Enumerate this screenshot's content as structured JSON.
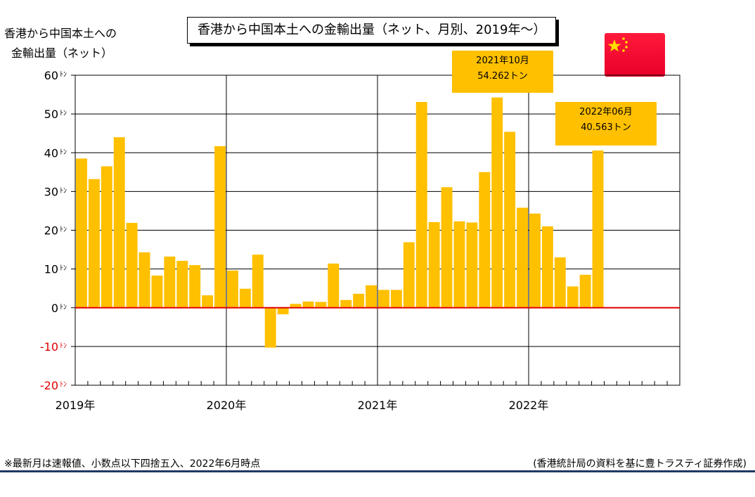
{
  "chart_title": "香港から中国本土への金輸出量（ネット、月別、2019年～）",
  "ylabel_lines": [
    "香港から中国本土への",
    "金輸出量（ネット）"
  ],
  "footnote": "※最新月は速報値、小数点以下四捨五入、2022年6月時点",
  "source": "(香港統計局の資料を基に豊トラスティ証券作成)",
  "colors": {
    "bar": "#ffc000",
    "zero_line": "#e00000",
    "negative_label": "#e00000",
    "grid": "#000000",
    "rule": "#1f3864"
  },
  "flag_icon": "china-flag-icon",
  "callouts": [
    {
      "line1": "2021年10月",
      "line2": "54.262トン"
    },
    {
      "line1": "2022年06月",
      "line2": "40.563トン"
    }
  ],
  "chart_data": {
    "type": "bar",
    "unit": "トン",
    "ylim": [
      -20,
      60
    ],
    "yticks": [
      {
        "value": 60,
        "label": "60"
      },
      {
        "value": 50,
        "label": "50"
      },
      {
        "value": 40,
        "label": "40"
      },
      {
        "value": 30,
        "label": "30"
      },
      {
        "value": 20,
        "label": "20"
      },
      {
        "value": 10,
        "label": "10"
      },
      {
        "value": 0,
        "label": "0"
      },
      {
        "value": -10,
        "label": "-10"
      },
      {
        "value": -20,
        "label": "-20"
      }
    ],
    "unit_mark": "ﾄﾝ",
    "year_labels": [
      "2019年",
      "2020年",
      "2021年",
      "2022年"
    ],
    "total_months": 48,
    "grid": true,
    "categories": [
      "2019-01",
      "2019-02",
      "2019-03",
      "2019-04",
      "2019-05",
      "2019-06",
      "2019-07",
      "2019-08",
      "2019-09",
      "2019-10",
      "2019-11",
      "2019-12",
      "2020-01",
      "2020-02",
      "2020-03",
      "2020-04",
      "2020-05",
      "2020-06",
      "2020-07",
      "2020-08",
      "2020-09",
      "2020-10",
      "2020-11",
      "2020-12",
      "2021-01",
      "2021-02",
      "2021-03",
      "2021-04",
      "2021-05",
      "2021-06",
      "2021-07",
      "2021-08",
      "2021-09",
      "2021-10",
      "2021-11",
      "2021-12",
      "2022-01",
      "2022-02",
      "2022-03",
      "2022-04",
      "2022-05",
      "2022-06"
    ],
    "values": [
      38.5,
      33.2,
      36.5,
      44.0,
      21.9,
      14.3,
      8.3,
      13.2,
      12.1,
      11.0,
      3.2,
      41.7,
      9.6,
      4.9,
      13.7,
      -10.3,
      -1.7,
      1.0,
      1.6,
      1.5,
      11.4,
      2.0,
      3.6,
      5.8,
      4.6,
      4.6,
      16.9,
      53.1,
      22.1,
      31.1,
      22.3,
      22.0,
      35.0,
      54.262,
      45.4,
      25.8,
      24.3,
      21.0,
      13.0,
      5.5,
      8.5,
      40.563
    ]
  }
}
